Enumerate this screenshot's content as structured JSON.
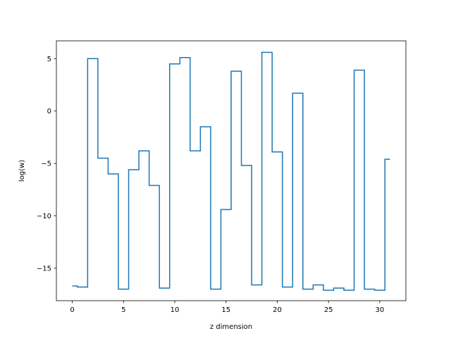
{
  "chart_data": {
    "type": "line",
    "drawstyle": "steps-mid",
    "xlabel": "z dimension",
    "ylabel": "log(w)",
    "xlim": [
      -1.55,
      32.55
    ],
    "ylim": [
      -18.1,
      6.7
    ],
    "xticks": [
      0,
      5,
      10,
      15,
      20,
      25,
      30
    ],
    "yticks": [
      -15,
      -10,
      -5,
      0,
      5
    ],
    "grid": false,
    "series": [
      {
        "color": "#1f77b4",
        "x": [
          0,
          1,
          2,
          3,
          4,
          5,
          6,
          7,
          8,
          9,
          10,
          11,
          12,
          13,
          14,
          15,
          16,
          17,
          18,
          19,
          20,
          21,
          22,
          23,
          24,
          25,
          26,
          27,
          28,
          29,
          30,
          31
        ],
        "values": [
          -16.7,
          -16.8,
          5.0,
          -4.5,
          -6.0,
          -17.0,
          -5.6,
          -3.8,
          -7.1,
          -16.9,
          4.5,
          5.1,
          -3.8,
          -1.5,
          -17.0,
          -9.4,
          3.8,
          -5.2,
          -16.6,
          5.6,
          -3.9,
          -16.8,
          1.7,
          -17.0,
          -16.6,
          -17.1,
          -16.9,
          -17.1,
          3.9,
          -17.0,
          -17.1,
          -4.6
        ]
      }
    ]
  }
}
